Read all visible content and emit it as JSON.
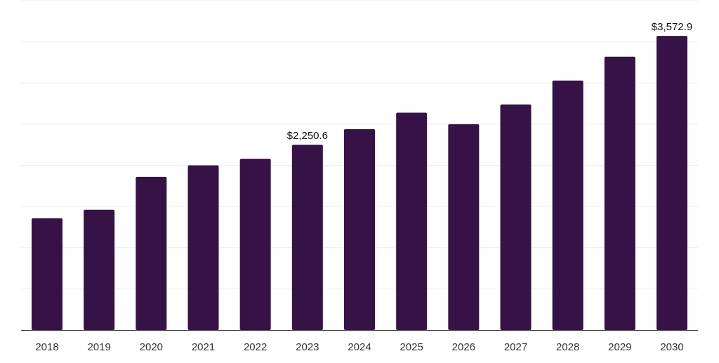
{
  "chart_data": {
    "type": "bar",
    "title": "",
    "xlabel": "",
    "ylabel": "",
    "categories": [
      "2018",
      "2019",
      "2020",
      "2021",
      "2022",
      "2023",
      "2024",
      "2025",
      "2026",
      "2027",
      "2028",
      "2029",
      "2030"
    ],
    "values": [
      1357,
      1461,
      1860,
      2000,
      2080,
      2250.6,
      2440,
      2640,
      2500,
      2740,
      3030,
      3320,
      3572.9
    ],
    "ylim": [
      0,
      4000
    ],
    "grid": true,
    "bar_color": "#371247",
    "data_labels": [
      {
        "category": "2023",
        "text": "$2,250.6"
      },
      {
        "category": "2030",
        "text": "$3,572.9"
      }
    ]
  }
}
